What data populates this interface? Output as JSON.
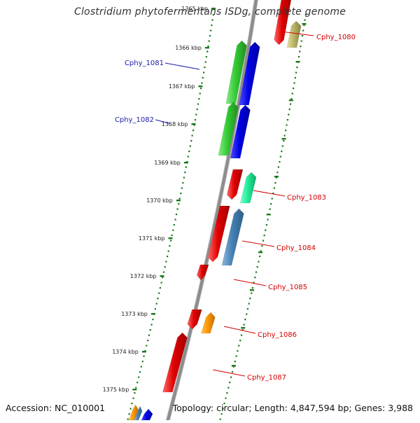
{
  "title": "Clostridium phytofermentans ISDg, complete genome",
  "footer": {
    "accession": "Accession: NC_010001",
    "topology": "Topology: circular; Length: 4,847,594 bp; Genes: 3,988"
  },
  "colors": {
    "backbone": "#8c8c8c",
    "tick": "#1a7a1a",
    "label_red": "#d40000",
    "label_blue": "#1a1aa8"
  },
  "scale": {
    "unit": "kbp",
    "labels": [
      "1365 kbp",
      "1366 kbp",
      "1367 kbp",
      "1368 kbp",
      "1369 kbp",
      "1370 kbp",
      "1371 kbp",
      "1372 kbp",
      "1373 kbp",
      "1374 kbp",
      "1375 kbp"
    ]
  },
  "genes": [
    {
      "name": "Cphy_1080",
      "color": "#d40000"
    },
    {
      "name": "Cphy_1081",
      "color": "#1a1aa8"
    },
    {
      "name": "Cphy_1082",
      "color": "#1a1aa8"
    },
    {
      "name": "Cphy_1083",
      "color": "#d40000"
    },
    {
      "name": "Cphy_1084",
      "color": "#d40000"
    },
    {
      "name": "Cphy_1085",
      "color": "#d40000"
    },
    {
      "name": "Cphy_1086",
      "color": "#d40000"
    },
    {
      "name": "Cphy_1087",
      "color": "#d40000"
    }
  ]
}
